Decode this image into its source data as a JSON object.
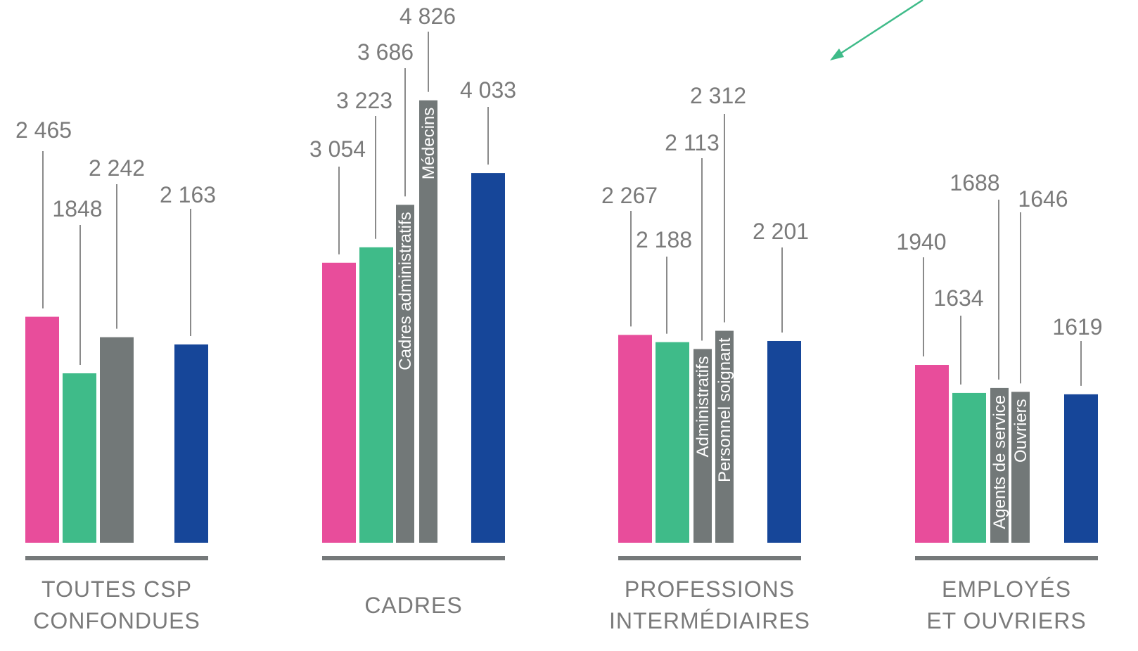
{
  "chart_data": {
    "type": "bar",
    "colors": {
      "pink": "#e84d9b",
      "green": "#3fbb89",
      "gray": "#727878",
      "blue": "#164699",
      "arrow": "#3fbb89"
    },
    "groups": [
      {
        "label_lines": [
          "TOUTES CSP",
          "CONFONDUES"
        ],
        "bars": [
          {
            "value": 2465,
            "label": "2 465",
            "color": "pink",
            "inner": ""
          },
          {
            "value": 1848,
            "label": "1848",
            "color": "green",
            "inner": ""
          },
          {
            "value": 2242,
            "label": "2 242",
            "color": "gray",
            "inner": ""
          },
          {
            "value": 2163,
            "label": "2 163",
            "color": "blue",
            "inner": ""
          }
        ]
      },
      {
        "label_lines": [
          "CADRES"
        ],
        "bars": [
          {
            "value": 3054,
            "label": "3 054",
            "color": "pink",
            "inner": ""
          },
          {
            "value": 3223,
            "label": "3 223",
            "color": "green",
            "inner": ""
          },
          {
            "value": 3686,
            "label": "3 686",
            "color": "gray",
            "inner": "Cadres administratifs"
          },
          {
            "value": 4826,
            "label": "4 826",
            "color": "gray",
            "inner": "Médecins"
          },
          {
            "value": 4033,
            "label": "4 033",
            "color": "blue",
            "inner": ""
          }
        ]
      },
      {
        "label_lines": [
          "PROFESSIONS",
          "INTERMÉDIAIRES"
        ],
        "bars": [
          {
            "value": 2267,
            "label": "2 267",
            "color": "pink",
            "inner": ""
          },
          {
            "value": 2188,
            "label": "2 188",
            "color": "green",
            "inner": ""
          },
          {
            "value": 2113,
            "label": "2 113",
            "color": "gray",
            "inner": "Administratifs"
          },
          {
            "value": 2312,
            "label": "2 312",
            "color": "gray",
            "inner": "Personnel soignant"
          },
          {
            "value": 2201,
            "label": "2 201",
            "color": "blue",
            "inner": ""
          }
        ]
      },
      {
        "label_lines": [
          "EMPLOYÉS",
          "ET OUVRIERS"
        ],
        "bars": [
          {
            "value": 1940,
            "label": "1940",
            "color": "pink",
            "inner": ""
          },
          {
            "value": 1634,
            "label": "1634",
            "color": "green",
            "inner": ""
          },
          {
            "value": 1688,
            "label": "1688",
            "color": "gray",
            "inner": "Agents de service"
          },
          {
            "value": 1646,
            "label": "1646",
            "color": "gray",
            "inner": "Ouvriers"
          },
          {
            "value": 1619,
            "label": "1619",
            "color": "blue",
            "inner": ""
          }
        ]
      }
    ]
  }
}
